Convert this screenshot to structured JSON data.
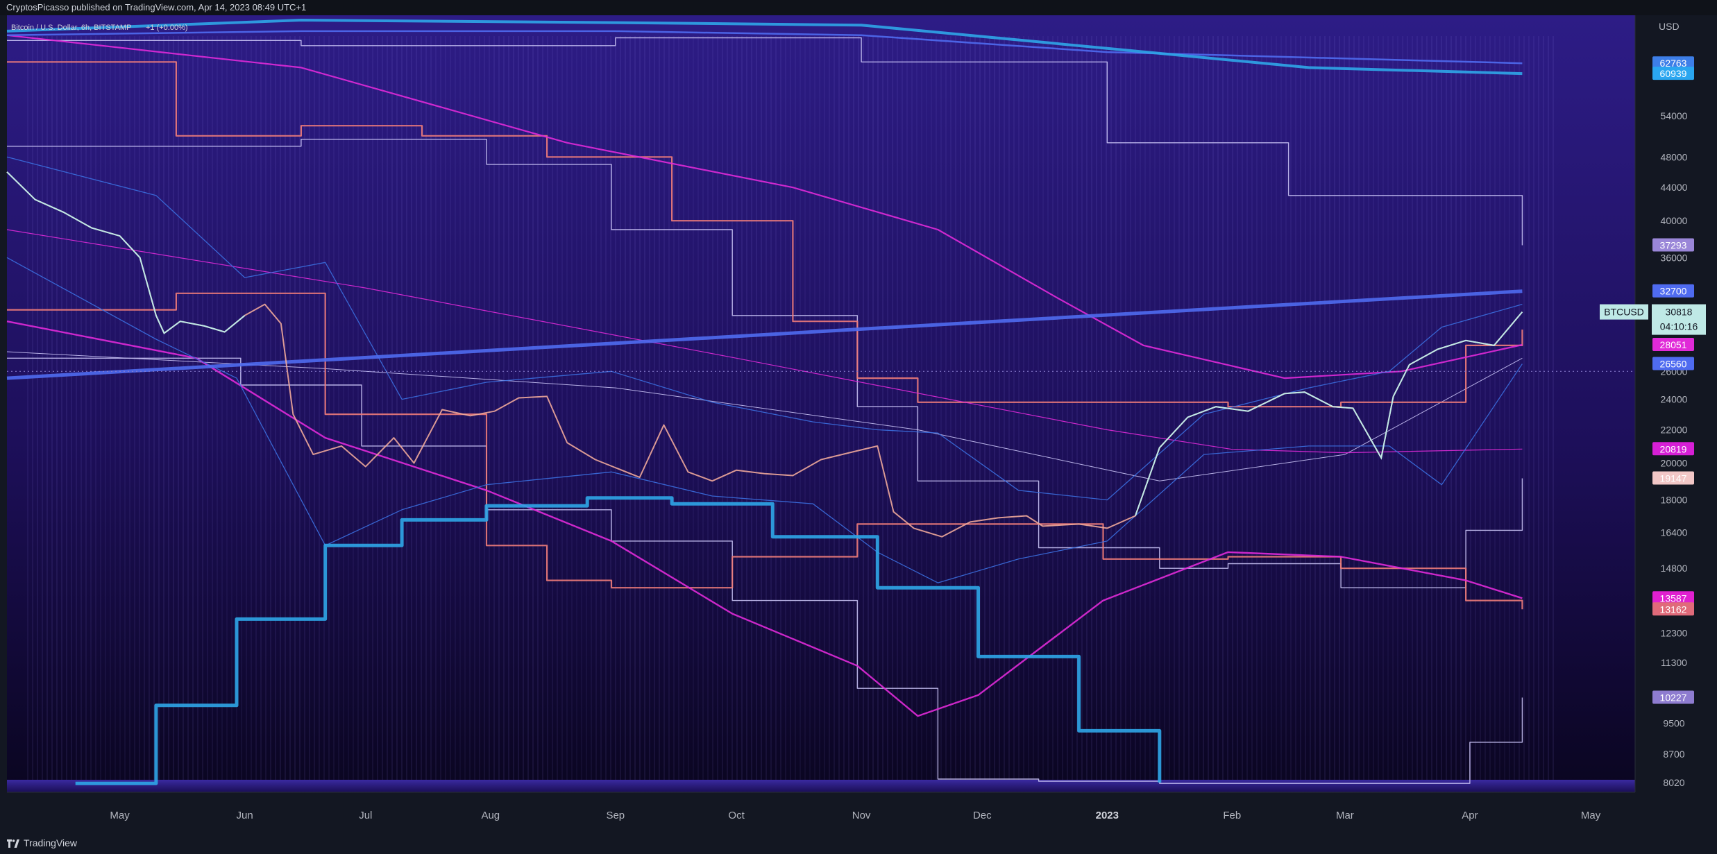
{
  "header": {
    "published": "CryptosPicasso published on TradingView.com, Apr 14, 2023 08:49 UTC+1"
  },
  "footer": {
    "brand": "TradingView"
  },
  "colors": {
    "background_top": "#2a1a7a",
    "background_bottom": "#0b0620",
    "panel": "#131722",
    "price_up": "#bfe9e6",
    "price_down": "#f0a89a",
    "blue_thick": "#2fa6e8",
    "blue_line": "#4f6bf0",
    "magenta": "#e02ad8",
    "salmon": "#f07c7a",
    "lavender": "#c9c3f5",
    "bollinger": "#3b6fe0"
  },
  "chart_data": {
    "type": "line",
    "title": "Bitcoin / U.S. Dollar, 6h, BITSTAMP",
    "title_suffix": "+1 (+0.00%)",
    "y_scale": "log",
    "y_unit": "USD",
    "ylim": [
      7800,
      72000
    ],
    "y_ticks": [
      "54000",
      "48000",
      "44000",
      "40000",
      "36000",
      "26000",
      "24000",
      "22000",
      "20000",
      "18000",
      "16400",
      "14800",
      "12300",
      "11300",
      "9500",
      "8700",
      "8020"
    ],
    "x_labels": [
      "May",
      "Jun",
      "Jul",
      "Aug",
      "Sep",
      "Oct",
      "Nov",
      "Dec",
      "2023",
      "Feb",
      "Mar",
      "Apr",
      "May"
    ],
    "xlim": [
      "2022-04-03",
      "2023-05-12"
    ],
    "x_label_dates": [
      "2022-05-01",
      "2022-06-01",
      "2022-07-01",
      "2022-08-01",
      "2022-09-01",
      "2022-10-01",
      "2022-11-01",
      "2022-12-01",
      "2023-01-01",
      "2023-02-01",
      "2023-03-01",
      "2023-04-01",
      "2023-05-01"
    ],
    "symbol": "BTCUSD",
    "last_price": "30818",
    "countdown": "04:10:16",
    "price_labels": [
      {
        "value": "62763",
        "color": "#3d7ee8"
      },
      {
        "value": "60939",
        "color": "#2aa6f0"
      },
      {
        "value": "37293",
        "color": "#9a86d8"
      },
      {
        "value": "32700",
        "color": "#4f6bf0"
      },
      {
        "value": "28051",
        "color": "#e02ad8"
      },
      {
        "value": "26560",
        "color": "#4f6bf0"
      },
      {
        "value": "20819",
        "color": "#d61fd6"
      },
      {
        "value": "19147",
        "color": "#f2c7c7"
      },
      {
        "value": "13587",
        "color": "#e020d0"
      },
      {
        "value": "13162",
        "color": "#e06a7a"
      },
      {
        "value": "10227",
        "color": "#8e7cd0"
      }
    ],
    "series": [
      {
        "key": "price",
        "x": [
          "2022-04-03",
          "2022-04-10",
          "2022-04-17",
          "2022-04-24",
          "2022-05-01",
          "2022-05-06",
          "2022-05-10",
          "2022-05-12",
          "2022-05-16",
          "2022-05-22",
          "2022-05-27",
          "2022-06-01",
          "2022-06-06",
          "2022-06-10",
          "2022-06-13",
          "2022-06-18",
          "2022-06-25",
          "2022-07-01",
          "2022-07-08",
          "2022-07-13",
          "2022-07-20",
          "2022-07-27",
          "2022-08-02",
          "2022-08-08",
          "2022-08-15",
          "2022-08-20",
          "2022-08-27",
          "2022-09-07",
          "2022-09-13",
          "2022-09-19",
          "2022-09-25",
          "2022-10-01",
          "2022-10-08",
          "2022-10-15",
          "2022-10-22",
          "2022-10-29",
          "2022-11-05",
          "2022-11-09",
          "2022-11-14",
          "2022-11-21",
          "2022-11-28",
          "2022-12-05",
          "2022-12-12",
          "2022-12-16",
          "2022-12-25",
          "2023-01-01",
          "2023-01-08",
          "2023-01-14",
          "2023-01-21",
          "2023-01-28",
          "2023-02-05",
          "2023-02-14",
          "2023-02-19",
          "2023-02-26",
          "2023-03-03",
          "2023-03-10",
          "2023-03-13",
          "2023-03-17",
          "2023-03-24",
          "2023-03-31",
          "2023-04-07",
          "2023-04-14"
        ],
        "y": [
          46000,
          42500,
          41000,
          39200,
          38300,
          36000,
          30500,
          29000,
          30000,
          29600,
          29100,
          30500,
          31500,
          29800,
          23000,
          20500,
          21000,
          19800,
          21500,
          20000,
          23300,
          22900,
          23200,
          24100,
          24200,
          21200,
          20200,
          19200,
          22300,
          19500,
          19000,
          19600,
          19400,
          19300,
          20200,
          20600,
          21000,
          17400,
          16600,
          16200,
          16900,
          17100,
          17200,
          16700,
          16800,
          16600,
          17200,
          20900,
          22800,
          23500,
          23200,
          24400,
          24500,
          23500,
          23400,
          20300,
          24200,
          26500,
          27700,
          28400,
          28000,
          30818
        ]
      },
      {
        "key": "bb_upper",
        "x": [
          "2022-04-03",
          "2022-05-10",
          "2022-06-01",
          "2022-06-21",
          "2022-07-10",
          "2022-07-31",
          "2022-08-31",
          "2022-09-25",
          "2022-10-20",
          "2022-11-05",
          "2022-11-20",
          "2022-12-10",
          "2023-01-01",
          "2023-01-25",
          "2023-02-20",
          "2023-03-12",
          "2023-03-25",
          "2023-04-14"
        ],
        "y": [
          48000,
          43000,
          34000,
          35500,
          24000,
          25200,
          26000,
          23800,
          22500,
          22000,
          21800,
          18500,
          18000,
          23000,
          24800,
          26000,
          29500,
          31500
        ]
      },
      {
        "key": "bb_lower",
        "x": [
          "2022-04-03",
          "2022-05-10",
          "2022-05-30",
          "2022-06-21",
          "2022-07-10",
          "2022-07-31",
          "2022-08-31",
          "2022-09-25",
          "2022-10-20",
          "2022-11-05",
          "2022-11-20",
          "2022-12-10",
          "2023-01-01",
          "2023-01-25",
          "2023-02-20",
          "2023-03-12",
          "2023-03-25",
          "2023-04-14"
        ],
        "y": [
          36000,
          28500,
          25500,
          15800,
          17500,
          18800,
          19500,
          18200,
          17800,
          15500,
          14200,
          15200,
          16000,
          20500,
          21000,
          21000,
          18800,
          26560
        ]
      },
      {
        "key": "blue_thick_low",
        "x": [
          "2022-04-20",
          "2022-05-10",
          "2022-05-30",
          "2022-06-21",
          "2022-07-10",
          "2022-07-31",
          "2022-08-25",
          "2022-09-15",
          "2022-10-10",
          "2022-11-05",
          "2022-11-30",
          "2022-12-25",
          "2023-01-14"
        ],
        "y": [
          8000,
          10000,
          12800,
          15800,
          17000,
          17700,
          18100,
          17800,
          16200,
          14000,
          11500,
          9300,
          8020
        ]
      },
      {
        "key": "blue_thick_high",
        "x": [
          "2022-04-03",
          "2022-06-15",
          "2022-09-01",
          "2022-11-01",
          "2023-01-01",
          "2023-02-20",
          "2023-04-14"
        ],
        "y": [
          68800,
          71000,
          70500,
          70000,
          65500,
          62000,
          60939
        ]
      },
      {
        "key": "blue_thin_high",
        "x": [
          "2022-04-03",
          "2022-06-15",
          "2022-09-01",
          "2022-11-01",
          "2023-01-01",
          "2023-04-14"
        ],
        "y": [
          68000,
          68800,
          68800,
          68000,
          64800,
          62763
        ]
      },
      {
        "key": "blue_line",
        "x": [
          "2022-04-03",
          "2023-04-14"
        ],
        "y": [
          25500,
          32700
        ]
      },
      {
        "key": "magenta_high",
        "x": [
          "2022-04-03",
          "2022-06-15",
          "2022-08-20",
          "2022-10-15",
          "2022-11-20",
          "2022-12-20",
          "2023-01-10",
          "2023-02-14",
          "2023-03-15",
          "2023-04-14"
        ],
        "y": [
          68000,
          62000,
          50000,
          44000,
          39000,
          32000,
          28000,
          25500,
          26000,
          28051
        ]
      },
      {
        "key": "magenta_thin",
        "x": [
          "2022-04-03",
          "2022-07-01",
          "2022-10-01",
          "2023-01-01",
          "2023-02-01",
          "2023-03-01",
          "2023-04-14"
        ],
        "y": [
          39000,
          33000,
          27000,
          22000,
          20800,
          20600,
          20819
        ]
      },
      {
        "key": "magenta_low",
        "x": [
          "2022-04-03",
          "2022-05-20",
          "2022-06-21",
          "2022-07-31",
          "2022-08-31",
          "2022-09-30",
          "2022-10-31",
          "2022-11-15",
          "2022-11-30",
          "2022-12-31",
          "2023-01-31",
          "2023-02-28",
          "2023-03-31",
          "2023-04-14"
        ],
        "y": [
          30000,
          27000,
          21500,
          18500,
          16000,
          13000,
          11200,
          9700,
          10300,
          13500,
          15500,
          15300,
          14300,
          13587
        ]
      },
      {
        "key": "salmon_high",
        "x": [
          "2022-04-03",
          "2022-05-15",
          "2022-06-15",
          "2022-07-15",
          "2022-08-15",
          "2022-09-15",
          "2022-10-15",
          "2022-10-31",
          "2022-11-15",
          "2022-12-31",
          "2023-01-31",
          "2023-02-28",
          "2023-03-31",
          "2023-04-14"
        ],
        "y": [
          63000,
          51000,
          52500,
          51000,
          48000,
          40000,
          30000,
          25500,
          23800,
          23800,
          23500,
          23800,
          28000,
          29300
        ]
      },
      {
        "key": "salmon_mid",
        "x": [
          "2022-04-03",
          "2022-05-15",
          "2022-06-21",
          "2022-07-31",
          "2022-08-15",
          "2022-08-31",
          "2022-09-30",
          "2022-10-31",
          "2022-12-31",
          "2023-01-31",
          "2023-02-28",
          "2023-03-31",
          "2023-04-14"
        ],
        "y": [
          31000,
          32500,
          23000,
          15800,
          14300,
          14000,
          15300,
          16800,
          15200,
          15300,
          14800,
          13500,
          13162
        ]
      },
      {
        "key": "lavender_top",
        "x": [
          "2022-04-03",
          "2022-06-15",
          "2022-09-01",
          "2022-11-01",
          "2023-01-01",
          "2023-02-15",
          "2023-04-14"
        ],
        "y": [
          67000,
          66000,
          67500,
          63000,
          50000,
          43000,
          37293
        ]
      },
      {
        "key": "lavender_mid",
        "x": [
          "2022-04-03",
          "2022-06-15",
          "2022-07-31",
          "2022-08-31",
          "2022-09-30",
          "2022-10-31",
          "2022-11-15",
          "2022-12-15",
          "2023-01-14",
          "2023-01-31",
          "2023-02-28",
          "2023-03-31",
          "2023-04-14"
        ],
        "y": [
          49500,
          50500,
          47000,
          39000,
          30500,
          23500,
          19000,
          15700,
          14800,
          15000,
          14000,
          16500,
          19147
        ]
      },
      {
        "key": "lavender_low",
        "x": [
          "2022-04-03",
          "2022-05-31",
          "2022-06-30",
          "2022-07-31",
          "2022-08-31",
          "2022-09-30",
          "2022-10-31",
          "2022-11-20",
          "2022-12-15",
          "2023-01-14",
          "2023-03-20",
          "2023-04-01",
          "2023-04-14"
        ],
        "y": [
          27000,
          25000,
          21000,
          17500,
          16000,
          13500,
          10500,
          8100,
          8050,
          8000,
          8000,
          9000,
          10227
        ]
      },
      {
        "key": "lavender_flat",
        "x": [
          "2022-04-03",
          "2022-06-21",
          "2022-09-01",
          "2022-11-15",
          "2023-01-14",
          "2023-03-01",
          "2023-04-14"
        ],
        "y": [
          27500,
          26200,
          24800,
          22000,
          19000,
          20500,
          27000
        ]
      }
    ]
  }
}
